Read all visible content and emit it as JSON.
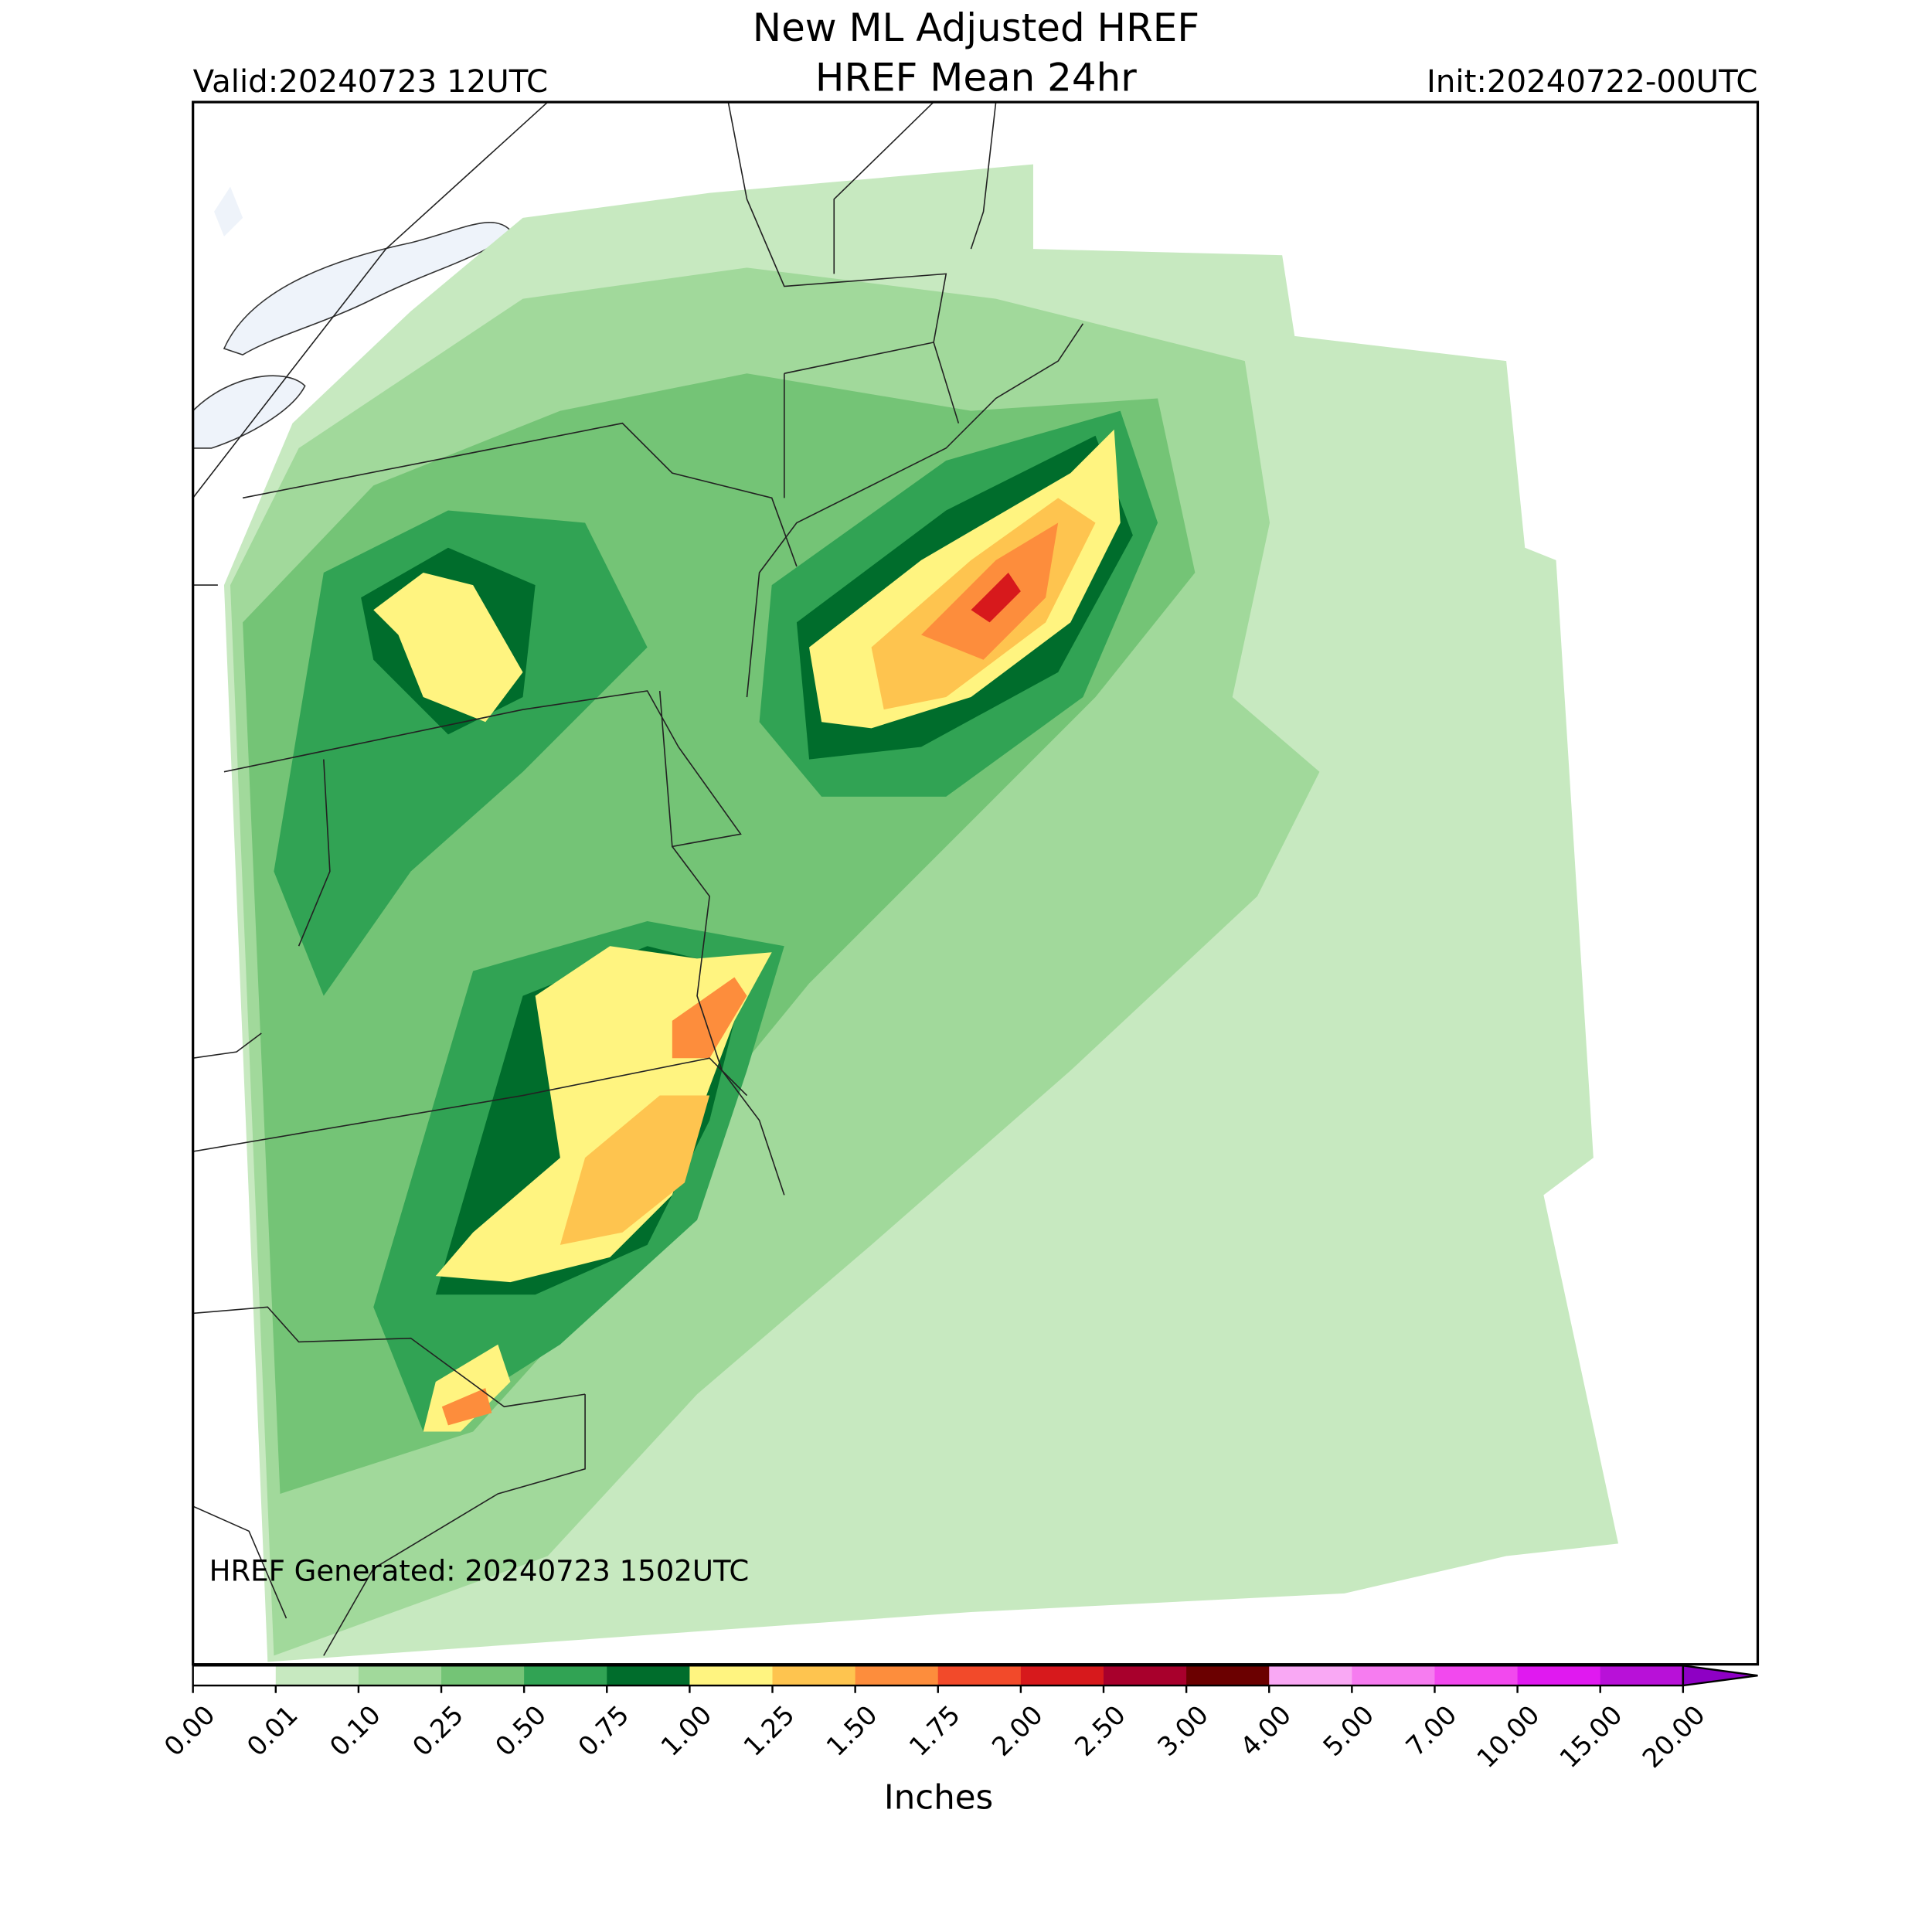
{
  "header": {
    "title": "New ML Adjusted HREF",
    "subtitle": "HREF Mean 24hr",
    "valid": "Valid:20240723 12UTC",
    "init": "Init:20240722-00UTC"
  },
  "map": {
    "annotation": "HREF Generated: 20240723 1502UTC"
  },
  "colorbar": {
    "label": "Inches",
    "ticks": [
      {
        "value": 0,
        "label": "0.00"
      },
      {
        "value": 0.01,
        "label": "0.01"
      },
      {
        "value": 0.1,
        "label": "0.10"
      },
      {
        "value": 0.25,
        "label": "0.25"
      },
      {
        "value": 0.5,
        "label": "0.50"
      },
      {
        "value": 0.75,
        "label": "0.75"
      },
      {
        "value": 1,
        "label": "1.00"
      },
      {
        "value": 1.25,
        "label": "1.25"
      },
      {
        "value": 1.5,
        "label": "1.50"
      },
      {
        "value": 1.75,
        "label": "1.75"
      },
      {
        "value": 2,
        "label": "2.00"
      },
      {
        "value": 2.5,
        "label": "2.50"
      },
      {
        "value": 3,
        "label": "3.00"
      },
      {
        "value": 4,
        "label": "4.00"
      },
      {
        "value": 5,
        "label": "5.00"
      },
      {
        "value": 7,
        "label": "7.00"
      },
      {
        "value": 10,
        "label": "10.00"
      },
      {
        "value": 15,
        "label": "15.00"
      },
      {
        "value": 20,
        "label": "20.00"
      }
    ],
    "colors": [
      "#ffffff",
      "#c7e9c0",
      "#a1d99b",
      "#74c476",
      "#31a354",
      "#006d2c",
      "#fff480",
      "#fec44f",
      "#fd8d3c",
      "#f24a2a",
      "#d7191c",
      "#a8002c",
      "#6b0000",
      "#f9a8f4",
      "#f67cf0",
      "#f249ee",
      "#e019f0",
      "#b811d8"
    ],
    "extend_color": "#8e00c4"
  }
}
